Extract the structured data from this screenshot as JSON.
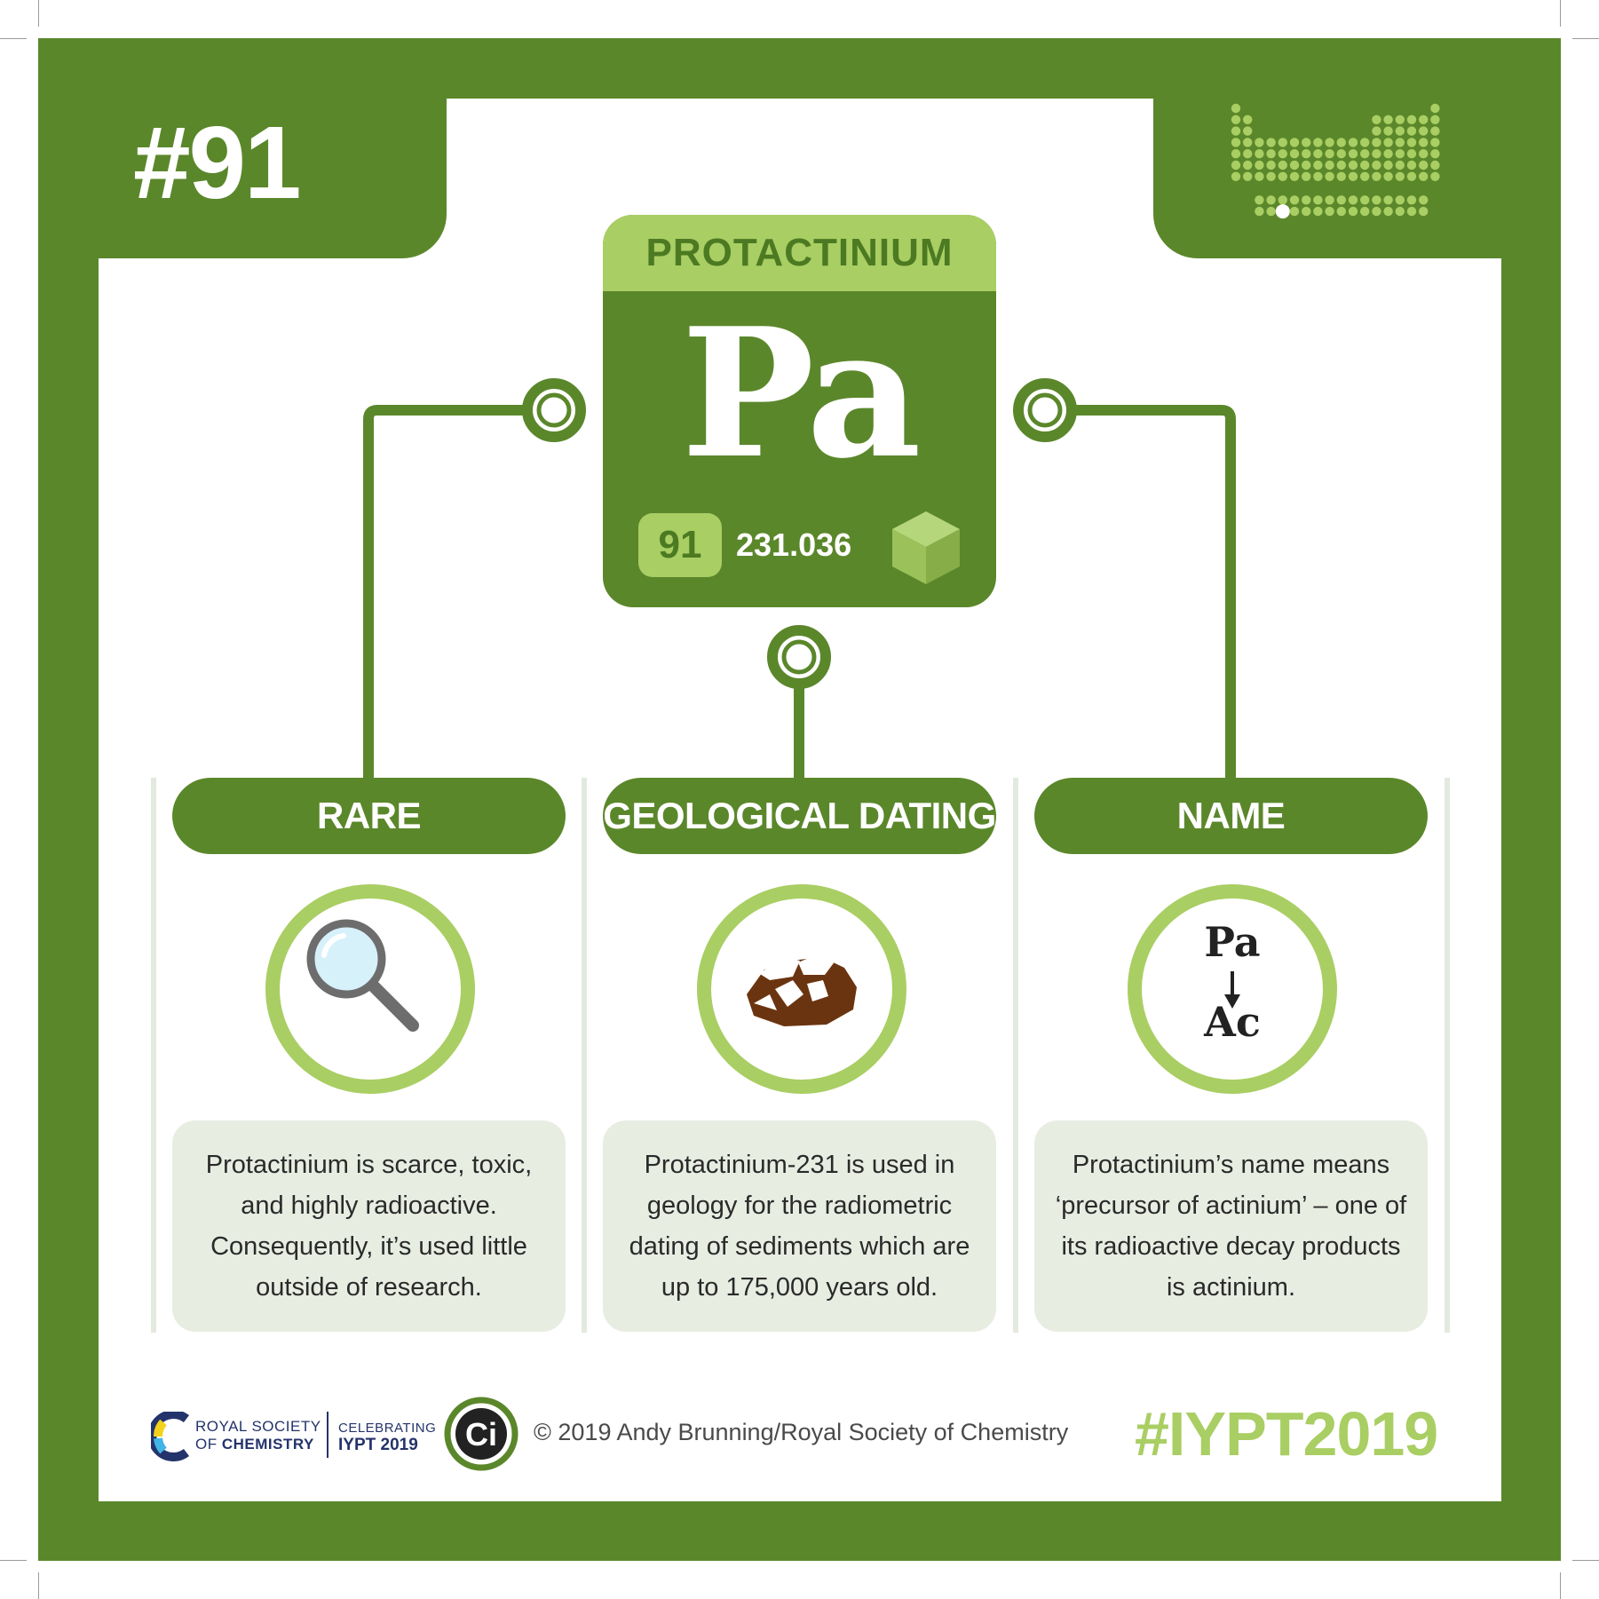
{
  "badge": {
    "text": "#91"
  },
  "element": {
    "name": "PROTACTINIUM",
    "symbol": "Pa",
    "atomic_number": "91",
    "atomic_mass": "231.036"
  },
  "columns": [
    {
      "header": "RARE",
      "icon": "magnifying-glass-icon",
      "text": "Protactinium is scarce, toxic, and highly radioactive. Consequently, it’s used little outside of research."
    },
    {
      "header": "GEOLOGICAL DATING",
      "icon": "rock-icon",
      "text": "Protactinium-231 is used in geology for the radiometric dating of sediments which are up to 175,000 years old."
    },
    {
      "header": "NAME",
      "icon": "decay-arrow-icon",
      "decay_from": "Pa",
      "decay_to": "Ac",
      "text": "Protactinium’s name means ‘precursor of actinium’ – one of its radioactive decay products is actinium."
    }
  ],
  "footer": {
    "rsc_line1": "ROYAL SOCIETY",
    "rsc_line2_prefix": "OF ",
    "rsc_line2_bold": "CHEMISTRY",
    "celebrating_line1": "CELEBRATING",
    "celebrating_line2": "IYPT 2019",
    "ci_logo_text": "Ci",
    "copyright": "© 2019 Andy Brunning/Royal Society of Chemistry",
    "hashtag": "#IYPT2019"
  },
  "colors": {
    "dark_green": "#5b872b",
    "light_green": "#a9ce63",
    "panel_grey": "#e8ede2",
    "rock_brown": "#6b3410",
    "navy": "#24336b"
  }
}
